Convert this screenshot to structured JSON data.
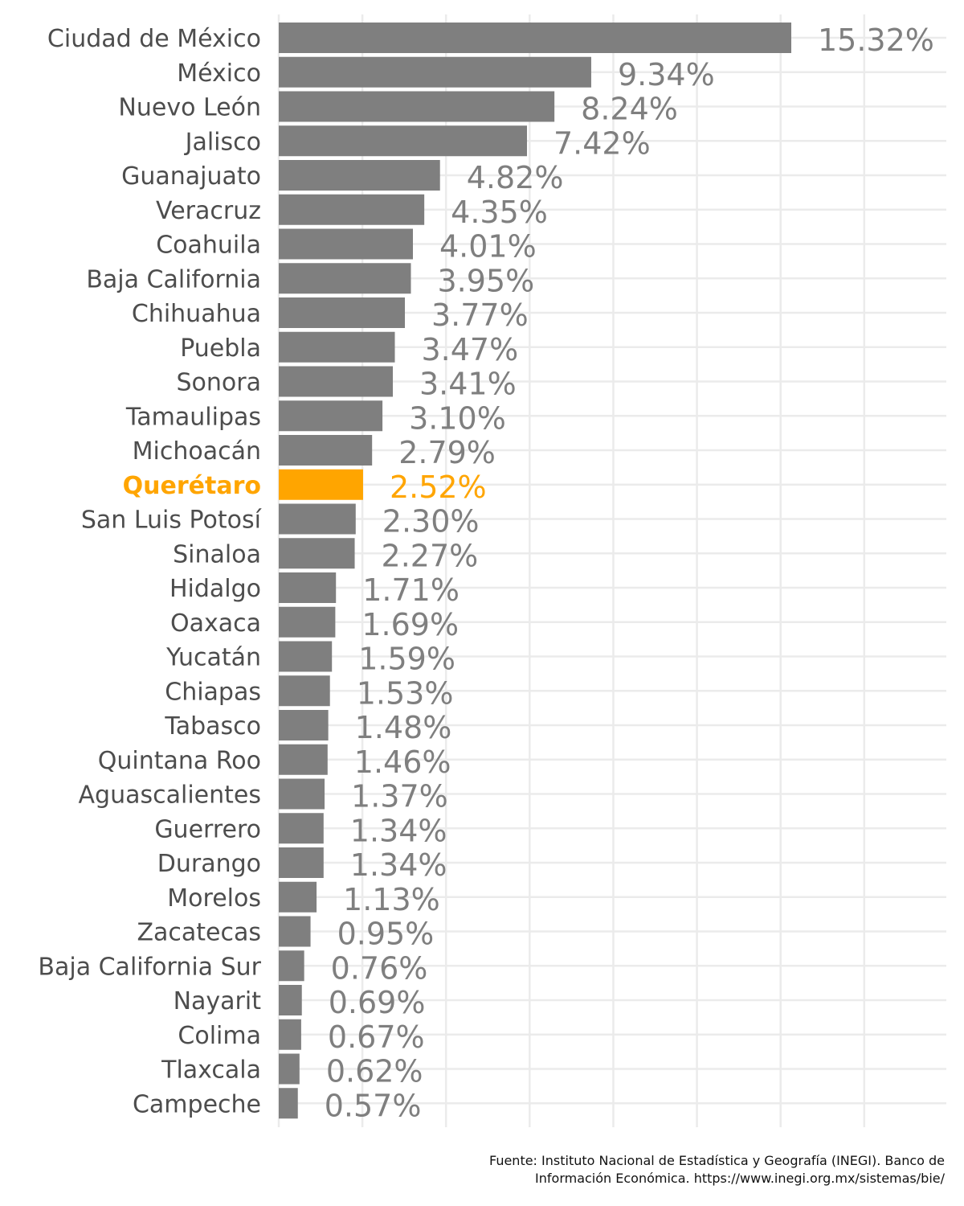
{
  "chart_data": {
    "type": "bar",
    "orientation": "horizontal",
    "categories": [
      "Ciudad de México",
      "México",
      "Nuevo León",
      "Jalisco",
      "Guanajuato",
      "Veracruz",
      "Coahuila",
      "Baja California",
      "Chihuahua",
      "Puebla",
      "Sonora",
      "Tamaulipas",
      "Michoacán",
      "Querétaro",
      "San Luis Potosí",
      "Sinaloa",
      "Hidalgo",
      "Oaxaca",
      "Yucatán",
      "Chiapas",
      "Tabasco",
      "Quintana Roo",
      "Aguascalientes",
      "Guerrero",
      "Durango",
      "Morelos",
      "Zacatecas",
      "Baja California Sur",
      "Nayarit",
      "Colima",
      "Tlaxcala",
      "Campeche"
    ],
    "values": [
      15.32,
      9.34,
      8.24,
      7.42,
      4.82,
      4.35,
      4.01,
      3.95,
      3.77,
      3.47,
      3.41,
      3.1,
      2.79,
      2.52,
      2.3,
      2.27,
      1.71,
      1.69,
      1.59,
      1.53,
      1.48,
      1.46,
      1.37,
      1.34,
      1.34,
      1.13,
      0.95,
      0.76,
      0.69,
      0.67,
      0.62,
      0.57
    ],
    "data_labels": [
      "15.32%",
      "9.34%",
      "8.24%",
      "7.42%",
      "4.82%",
      "4.35%",
      "4.01%",
      "3.95%",
      "3.77%",
      "3.47%",
      "3.41%",
      "3.10%",
      "2.79%",
      "2.52%",
      "2.30%",
      "2.27%",
      "1.71%",
      "1.69%",
      "1.59%",
      "1.53%",
      "1.48%",
      "1.46%",
      "1.37%",
      "1.34%",
      "1.34%",
      "1.13%",
      "0.95%",
      "0.76%",
      "0.69%",
      "0.67%",
      "0.62%",
      "0.57%"
    ],
    "highlight": "Querétaro",
    "xlim": [
      0,
      20
    ],
    "grid": true,
    "title": "",
    "xlabel": "",
    "ylabel": ""
  },
  "colors": {
    "bar": "#7f7f7f",
    "highlight": "#ffa500",
    "grid": "#ebebeb",
    "category_text": "#4d4d4d",
    "value_text": "#7f7f7f"
  },
  "caption": {
    "line1": "Fuente: Instituto Nacional de Estadística y Geografía (INEGI). Banco de",
    "line2": "Información Económica. https://www.inegi.org.mx/sistemas/bie/"
  }
}
